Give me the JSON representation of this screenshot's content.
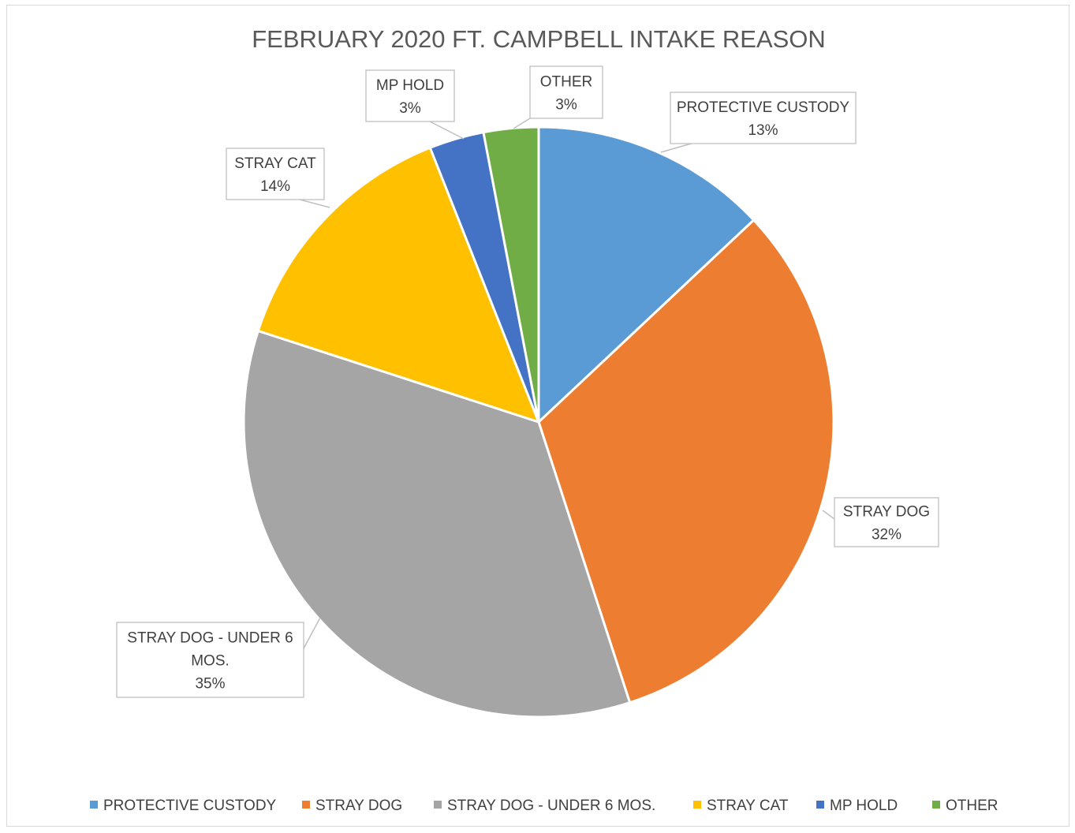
{
  "chart_data": {
    "type": "pie",
    "title": "FEBRUARY 2020 FT. CAMPBELL INTAKE REASON",
    "slices": [
      {
        "label": "PROTECTIVE CUSTODY",
        "value": 13,
        "data_label": [
          "PROTECTIVE CUSTODY",
          "13%"
        ],
        "color": "#5B9BD5"
      },
      {
        "label": "STRAY DOG",
        "value": 32,
        "data_label": [
          "STRAY DOG",
          "32%"
        ],
        "color": "#ED7D31"
      },
      {
        "label": "STRAY DOG - UNDER 6 MOS.",
        "value": 35,
        "data_label": [
          "STRAY DOG - UNDER 6",
          "MOS.",
          "35%"
        ],
        "color": "#A5A5A5"
      },
      {
        "label": "STRAY CAT",
        "value": 14,
        "data_label": [
          "STRAY CAT",
          "14%"
        ],
        "color": "#FFC000"
      },
      {
        "label": "MP HOLD",
        "value": 3,
        "data_label": [
          "MP HOLD",
          "3%"
        ],
        "color": "#4472C4"
      },
      {
        "label": "OTHER",
        "value": 3,
        "data_label": [
          "OTHER",
          "3%"
        ],
        "color": "#70AD47"
      }
    ],
    "legend": [
      "PROTECTIVE CUSTODY",
      "STRAY DOG",
      "STRAY DOG - UNDER 6 MOS.",
      "STRAY CAT",
      "MP HOLD",
      "OTHER"
    ],
    "legend_position": "bottom",
    "start_angle": "12 o'clock, clockwise"
  }
}
